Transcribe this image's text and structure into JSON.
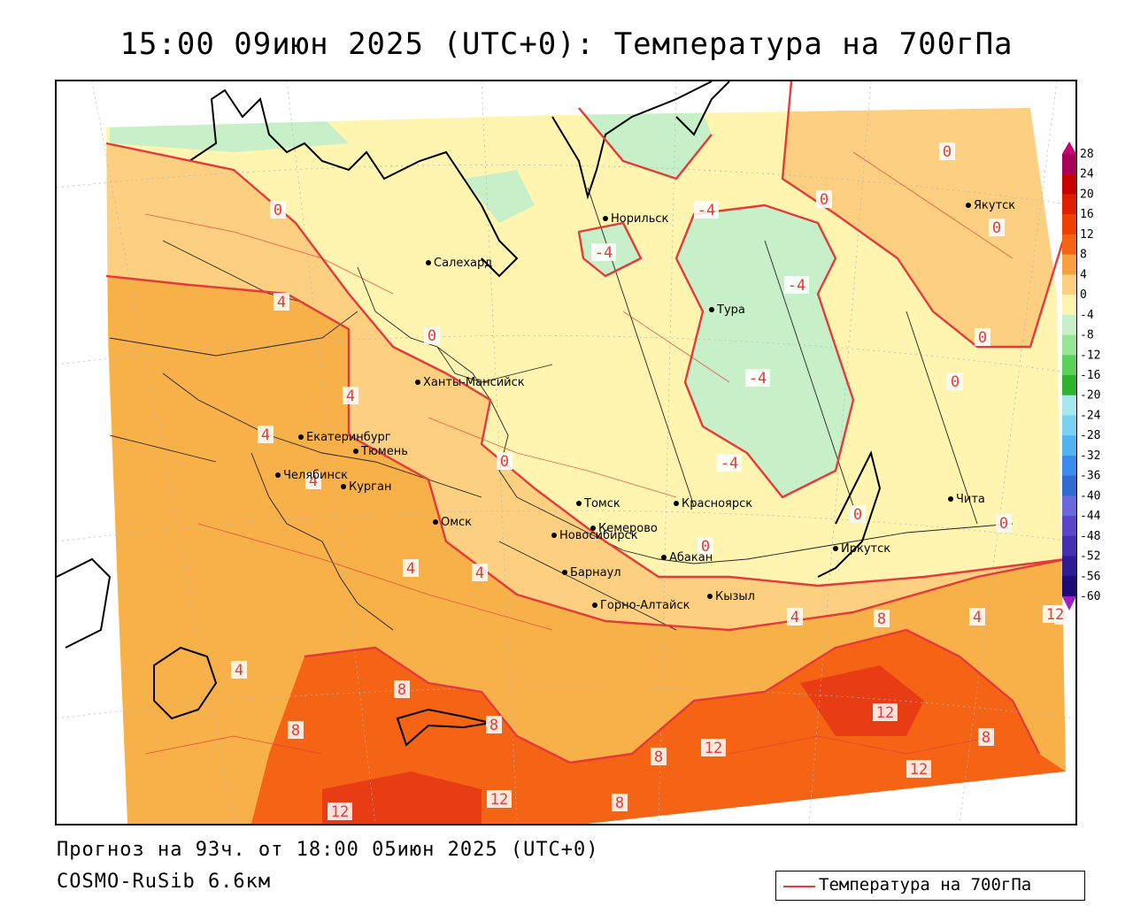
{
  "header": {
    "title": "15:00 09июн 2025 (UTC+0): Температура на 700гПа"
  },
  "footer": {
    "forecast_line": "Прогноз на 93ч. от 18:00 05июн 2025 (UTC+0)",
    "model_line": "COSMO-RuSib 6.6км"
  },
  "legend": {
    "label": "Температура на 700гПа",
    "line_color": "#e43a3a"
  },
  "colorbar": {
    "ticks": [
      "28",
      "24",
      "20",
      "16",
      "12",
      "8",
      "4",
      "0",
      "-4",
      "-8",
      "-12",
      "-16",
      "-20",
      "-24",
      "-28",
      "-32",
      "-36",
      "-40",
      "-44",
      "-48",
      "-52",
      "-56",
      "-60"
    ],
    "colors": [
      "#a8005a",
      "#c80000",
      "#e01e00",
      "#f04000",
      "#f46414",
      "#f8a040",
      "#fcd080",
      "#fff5b0",
      "#c8f0c8",
      "#96e696",
      "#5ad25a",
      "#2cb42c",
      "#a8e6f0",
      "#78d2f0",
      "#50b4f0",
      "#3c8cf0",
      "#2e6ad2",
      "#6a6ade",
      "#5a46c8",
      "#4430b0",
      "#2e1c96",
      "#1c0a78",
      "#9c28c8"
    ]
  },
  "map": {
    "colors": {
      "c_neg4": "#c8f0c8",
      "c_0": "#fff5b0",
      "c_4": "#fcd080",
      "c_8": "#f8b048",
      "c_12": "#f46414",
      "c_16": "#e83c14",
      "isoline": "#e43a3a"
    },
    "cities": [
      {
        "name": "Норильск",
        "icon": "city-dot"
      },
      {
        "name": "Якутск",
        "icon": "city-dot"
      },
      {
        "name": "Салехард",
        "icon": "city-dot"
      },
      {
        "name": "Тура",
        "icon": "city-dot"
      },
      {
        "name": "Ханты-Мансийск",
        "icon": "city-dot"
      },
      {
        "name": "Екатеринбург",
        "icon": "city-dot"
      },
      {
        "name": "Тюмень",
        "icon": "city-dot"
      },
      {
        "name": "Челябинск",
        "icon": "city-dot"
      },
      {
        "name": "Курган",
        "icon": "city-dot"
      },
      {
        "name": "Омск",
        "icon": "city-dot"
      },
      {
        "name": "Новосибирск",
        "icon": "city-dot"
      },
      {
        "name": "Томск",
        "icon": "city-dot"
      },
      {
        "name": "Кемерово",
        "icon": "city-dot"
      },
      {
        "name": "Красноярск",
        "icon": "city-dot"
      },
      {
        "name": "Барнаул",
        "icon": "city-dot"
      },
      {
        "name": "Абакан",
        "icon": "city-dot"
      },
      {
        "name": "Горно-Алтайск",
        "icon": "city-dot"
      },
      {
        "name": "Кызыл",
        "icon": "city-dot"
      },
      {
        "name": "Иркутск",
        "icon": "city-dot"
      },
      {
        "name": "Чита",
        "icon": "city-dot"
      }
    ],
    "isoline_labels": [
      "0",
      "0",
      "0",
      "0",
      "0",
      "0",
      "0",
      "0",
      "0",
      "0",
      "0",
      "-4",
      "-4",
      "-4",
      "-4",
      "-4",
      "4",
      "4",
      "4",
      "4",
      "4",
      "4",
      "4",
      "4",
      "4",
      "4",
      "8",
      "8",
      "8",
      "8",
      "8",
      "8",
      "8",
      "12",
      "12",
      "12",
      "12",
      "12",
      "12"
    ]
  }
}
